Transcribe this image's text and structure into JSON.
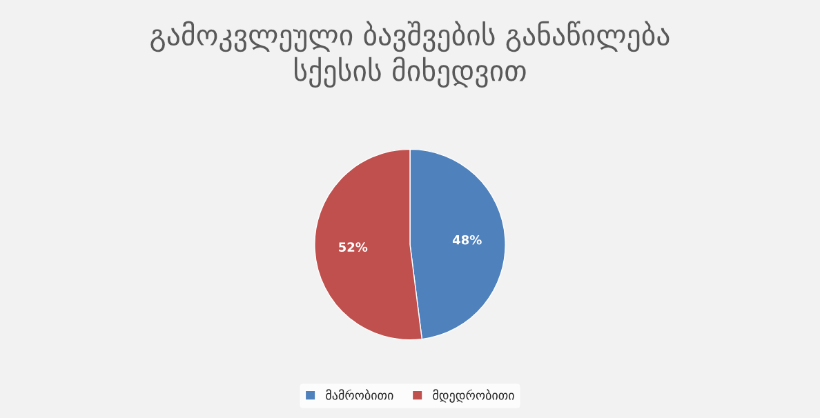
{
  "chart_data": {
    "type": "pie",
    "title": "გამოკვლეული ბავშვების განაწილება\nსქესის მიხედვით",
    "categories": [
      "მამრობითი",
      "მდედრობითი"
    ],
    "values": [
      48,
      52
    ],
    "colors": [
      "#4f81bd",
      "#c0504d"
    ],
    "value_labels": [
      "48%",
      "52%"
    ],
    "legend": "bottom"
  }
}
